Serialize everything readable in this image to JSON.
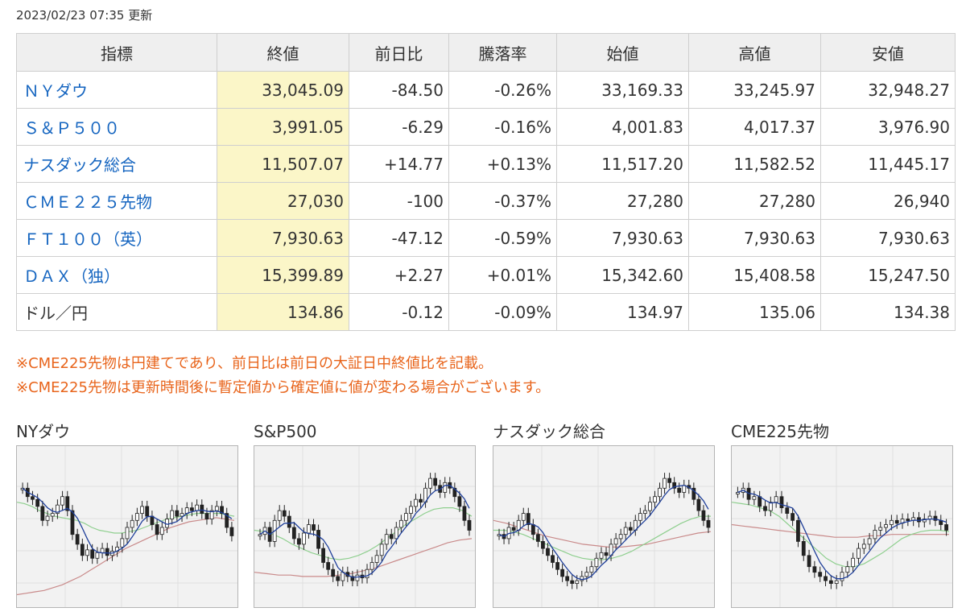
{
  "updated": "2023/02/23 07:35 更新",
  "headers": [
    "指標",
    "終値",
    "前日比",
    "騰落率",
    "始値",
    "高値",
    "安値"
  ],
  "rows": [
    {
      "name": "ＮＹダウ",
      "link": true,
      "close": "33,045.09",
      "change": "-84.50",
      "rate": "-0.26%",
      "open": "33,169.33",
      "high": "33,245.97",
      "low": "32,948.27",
      "dir": "neg"
    },
    {
      "name": "Ｓ＆Ｐ５００",
      "link": true,
      "close": "3,991.05",
      "change": "-6.29",
      "rate": "-0.16%",
      "open": "4,001.83",
      "high": "4,017.37",
      "low": "3,976.90",
      "dir": "neg"
    },
    {
      "name": "ナスダック総合",
      "link": true,
      "close": "11,507.07",
      "change": "+14.77",
      "rate": "+0.13%",
      "open": "11,517.20",
      "high": "11,582.52",
      "low": "11,445.17",
      "dir": "pos"
    },
    {
      "name": "ＣＭＥ２２５先物",
      "link": true,
      "close": "27,030",
      "change": "-100",
      "rate": "-0.37%",
      "open": "27,280",
      "high": "27,280",
      "low": "26,940",
      "dir": "neg"
    },
    {
      "name": "ＦＴ１００（英）",
      "link": true,
      "close": "7,930.63",
      "change": "-47.12",
      "rate": "-0.59%",
      "open": "7,930.63",
      "high": "7,930.63",
      "low": "7,930.63",
      "dir": "neg"
    },
    {
      "name": "ＤＡＸ（独）",
      "link": true,
      "close": "15,399.89",
      "change": "+2.27",
      "rate": "+0.01%",
      "open": "15,342.60",
      "high": "15,408.58",
      "low": "15,247.50",
      "dir": "pos"
    },
    {
      "name": "ドル／円",
      "link": false,
      "close": "134.86",
      "change": "-0.12",
      "rate": "-0.09%",
      "open": "134.97",
      "high": "135.06",
      "low": "134.38",
      "dir": "neg"
    }
  ],
  "notes": [
    "※CME225先物は円建てであり、前日比は前日の大証日中終値比を記載。",
    "※CME225先物は更新時間後に暫定値から確定値に値が変わる場合がございます。"
  ],
  "charts": [
    {
      "title": "NYダウ",
      "closes": [
        0.78,
        0.72,
        0.7,
        0.65,
        0.55,
        0.58,
        0.6,
        0.66,
        0.72,
        0.62,
        0.45,
        0.38,
        0.3,
        0.34,
        0.28,
        0.32,
        0.35,
        0.3,
        0.33,
        0.36,
        0.42,
        0.5,
        0.55,
        0.6,
        0.65,
        0.58,
        0.52,
        0.45,
        0.5,
        0.56,
        0.62,
        0.58,
        0.6,
        0.64,
        0.62,
        0.66,
        0.6,
        0.56,
        0.62,
        0.65,
        0.6,
        0.5,
        0.44
      ],
      "ma_mid": [
        0.68,
        0.67,
        0.65,
        0.62,
        0.6,
        0.58,
        0.57,
        0.56,
        0.55,
        0.53,
        0.5,
        0.48,
        0.47,
        0.46,
        0.46,
        0.47,
        0.48,
        0.5,
        0.52,
        0.54,
        0.56,
        0.57,
        0.58,
        0.59,
        0.6,
        0.6,
        0.6,
        0.6,
        0.59,
        0.58
      ],
      "ma_long": [
        0.02,
        0.03,
        0.04,
        0.05,
        0.07,
        0.09,
        0.12,
        0.15,
        0.19,
        0.23,
        0.27,
        0.31,
        0.35,
        0.38,
        0.41,
        0.44,
        0.47,
        0.5,
        0.52,
        0.54,
        0.55,
        0.56,
        0.57,
        0.56,
        0.55
      ]
    },
    {
      "title": "S&P500",
      "closes": [
        0.45,
        0.5,
        0.4,
        0.55,
        0.62,
        0.58,
        0.5,
        0.42,
        0.38,
        0.46,
        0.52,
        0.48,
        0.35,
        0.25,
        0.2,
        0.15,
        0.12,
        0.18,
        0.15,
        0.12,
        0.16,
        0.14,
        0.2,
        0.25,
        0.3,
        0.38,
        0.45,
        0.42,
        0.5,
        0.55,
        0.6,
        0.65,
        0.7,
        0.68,
        0.78,
        0.85,
        0.8,
        0.75,
        0.82,
        0.78,
        0.72,
        0.65,
        0.55,
        0.48
      ],
      "ma_mid": [
        0.48,
        0.47,
        0.45,
        0.42,
        0.38,
        0.35,
        0.32,
        0.3,
        0.28,
        0.27,
        0.28,
        0.3,
        0.33,
        0.37,
        0.42,
        0.47,
        0.52,
        0.56,
        0.6,
        0.63,
        0.64,
        0.64,
        0.62,
        0.58
      ],
      "ma_long": [
        0.18,
        0.17,
        0.16,
        0.16,
        0.15,
        0.15,
        0.15,
        0.16,
        0.17,
        0.19,
        0.21,
        0.24,
        0.27,
        0.3,
        0.33,
        0.36,
        0.39,
        0.41,
        0.42
      ]
    },
    {
      "title": "ナスダック総合",
      "closes": [
        0.45,
        0.42,
        0.5,
        0.48,
        0.55,
        0.6,
        0.52,
        0.45,
        0.4,
        0.35,
        0.3,
        0.25,
        0.2,
        0.15,
        0.12,
        0.1,
        0.12,
        0.15,
        0.18,
        0.22,
        0.28,
        0.32,
        0.3,
        0.38,
        0.42,
        0.45,
        0.5,
        0.48,
        0.55,
        0.6,
        0.62,
        0.68,
        0.72,
        0.78,
        0.85,
        0.82,
        0.78,
        0.75,
        0.8,
        0.78,
        0.7,
        0.62,
        0.55,
        0.5
      ],
      "ma_mid": [
        0.48,
        0.48,
        0.47,
        0.45,
        0.42,
        0.39,
        0.36,
        0.33,
        0.3,
        0.28,
        0.27,
        0.27,
        0.28,
        0.3,
        0.33,
        0.37,
        0.41,
        0.45,
        0.49,
        0.53,
        0.56,
        0.58,
        0.58
      ],
      "ma_long": [
        0.55,
        0.53,
        0.5,
        0.47,
        0.44,
        0.42,
        0.4,
        0.38,
        0.37,
        0.36,
        0.36,
        0.37,
        0.38,
        0.4,
        0.42,
        0.44,
        0.46,
        0.47
      ]
    },
    {
      "title": "CME225先物",
      "closes": [
        0.75,
        0.78,
        0.7,
        0.72,
        0.65,
        0.62,
        0.68,
        0.72,
        0.64,
        0.6,
        0.55,
        0.4,
        0.3,
        0.22,
        0.18,
        0.15,
        0.12,
        0.1,
        0.12,
        0.18,
        0.22,
        0.28,
        0.35,
        0.38,
        0.42,
        0.48,
        0.5,
        0.52,
        0.55,
        0.53,
        0.56,
        0.55,
        0.57,
        0.54,
        0.56,
        0.58,
        0.55,
        0.52,
        0.48
      ],
      "ma_mid": [
        0.68,
        0.67,
        0.66,
        0.64,
        0.62,
        0.58,
        0.52,
        0.46,
        0.4,
        0.34,
        0.28,
        0.24,
        0.22,
        0.22,
        0.24,
        0.28,
        0.32,
        0.37,
        0.42,
        0.45,
        0.47,
        0.48,
        0.48,
        0.47
      ],
      "ma_long": [
        0.52,
        0.51,
        0.5,
        0.49,
        0.48,
        0.47,
        0.46,
        0.45,
        0.44,
        0.43,
        0.43,
        0.43,
        0.44,
        0.44,
        0.45,
        0.45,
        0.45,
        0.45,
        0.45,
        0.45
      ]
    }
  ]
}
